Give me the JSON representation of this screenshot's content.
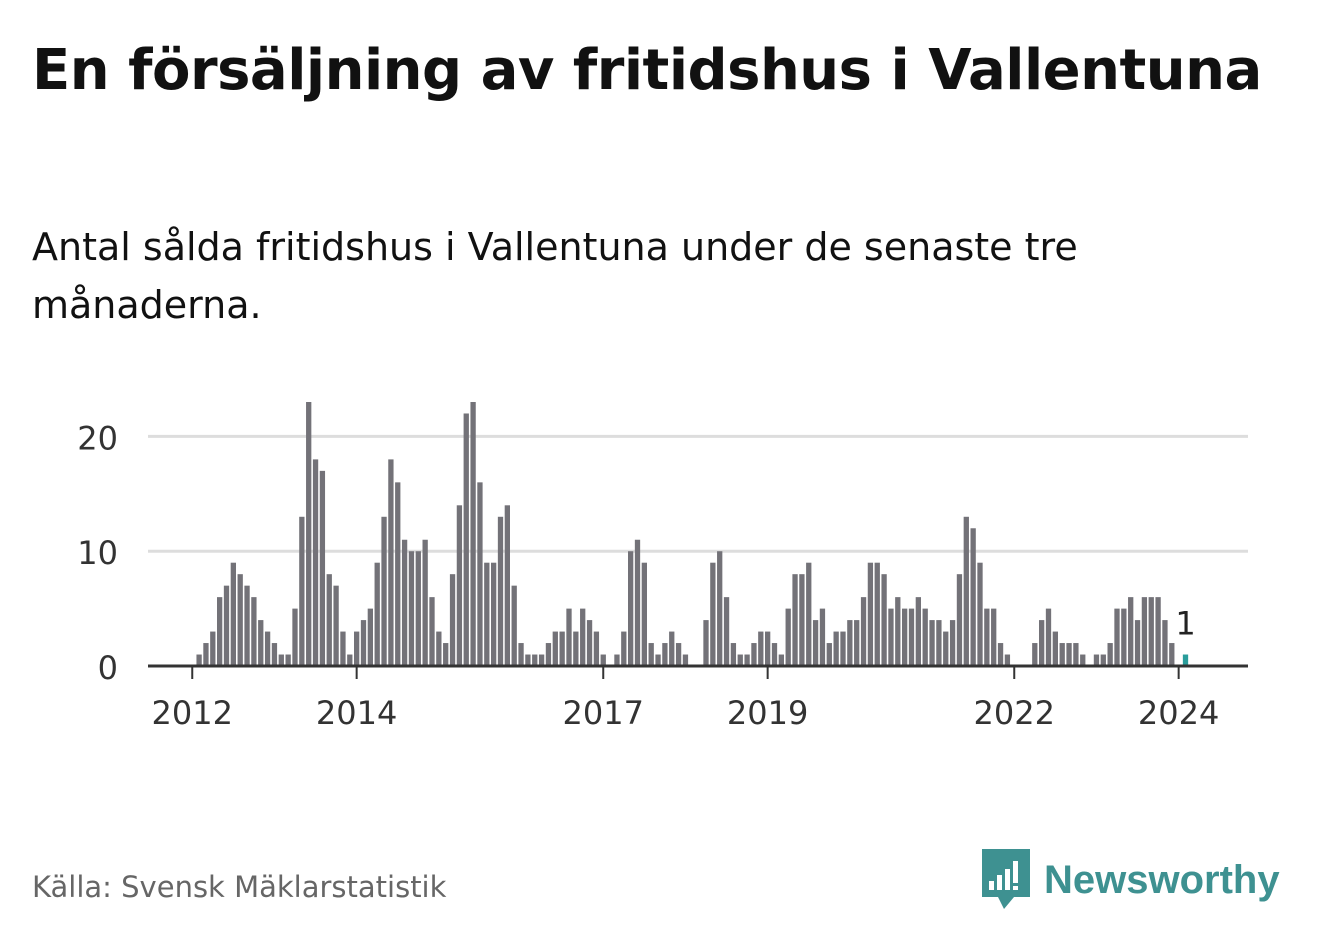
{
  "title": "En försäljning av fritidshus i Vallentuna",
  "subtitle": "Antal sålda fritidshus i Vallentuna under de senaste tre månaderna.",
  "source": "Källa: Svensk Mäklarstatistik",
  "brand": {
    "name": "Newsworthy",
    "icon": "newsworthy-logo-icon"
  },
  "colors": {
    "bar": "#737278",
    "highlight": "#2a9d9b",
    "grid": "#dddddd",
    "axis": "#333333",
    "text": "#333333"
  },
  "chart_data": {
    "type": "bar",
    "title": "",
    "xlabel": "",
    "ylabel": "",
    "grid": true,
    "ylim": [
      0,
      23
    ],
    "yticks": [
      0,
      10,
      20
    ],
    "x_start": "2011-07",
    "xticks": [
      {
        "label": "2012",
        "at": "2012-01"
      },
      {
        "label": "2014",
        "at": "2014-01"
      },
      {
        "label": "2017",
        "at": "2017-01"
      },
      {
        "label": "2019",
        "at": "2019-01"
      },
      {
        "label": "2022",
        "at": "2022-01"
      },
      {
        "label": "2024",
        "at": "2024-01"
      }
    ],
    "values": [
      0,
      0,
      0,
      0,
      0,
      0,
      0,
      1,
      2,
      3,
      6,
      7,
      9,
      8,
      7,
      6,
      4,
      3,
      2,
      1,
      1,
      5,
      13,
      23,
      18,
      17,
      8,
      7,
      3,
      1,
      3,
      4,
      5,
      9,
      13,
      18,
      16,
      11,
      10,
      10,
      11,
      6,
      3,
      2,
      8,
      14,
      22,
      23,
      16,
      9,
      9,
      13,
      14,
      7,
      2,
      1,
      1,
      1,
      2,
      3,
      3,
      5,
      3,
      5,
      4,
      3,
      1,
      0,
      1,
      3,
      10,
      11,
      9,
      2,
      1,
      2,
      3,
      2,
      1,
      0,
      0,
      4,
      9,
      10,
      6,
      2,
      1,
      1,
      2,
      3,
      3,
      2,
      1,
      5,
      8,
      8,
      9,
      4,
      5,
      2,
      3,
      3,
      4,
      4,
      6,
      9,
      9,
      8,
      5,
      6,
      5,
      5,
      6,
      5,
      4,
      4,
      3,
      4,
      8,
      13,
      12,
      9,
      5,
      5,
      2,
      1,
      0,
      0,
      0,
      2,
      4,
      5,
      3,
      2,
      2,
      2,
      1,
      0,
      1,
      1,
      2,
      5,
      5,
      6,
      4,
      6,
      6,
      6,
      4,
      2,
      0,
      1
    ],
    "highlight_last": true,
    "last_label": "1"
  }
}
